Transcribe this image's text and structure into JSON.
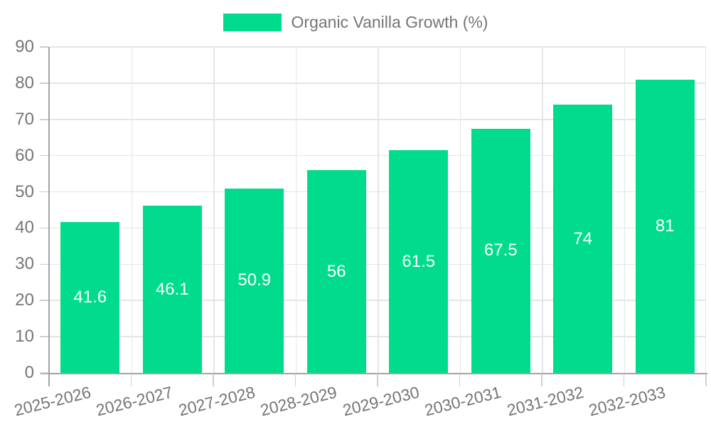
{
  "legend": {
    "label": "Organic Vanilla Growth (%)"
  },
  "chart_data": {
    "type": "bar",
    "title": "Organic Vanilla Growth (%)",
    "categories": [
      "2025-2026",
      "2026-2027",
      "2027-2028",
      "2028-2029",
      "2029-2030",
      "2030-2031",
      "2031-2032",
      "2032-2033"
    ],
    "series": [
      {
        "name": "Organic Vanilla Growth (%)",
        "values": [
          41.6,
          46.1,
          50.9,
          56,
          61.5,
          67.5,
          74,
          81
        ]
      }
    ],
    "values": [
      41.6,
      46.1,
      50.9,
      56,
      61.5,
      67.5,
      74,
      81
    ],
    "data_labels": [
      41.6,
      46.1,
      50.9,
      56,
      61.5,
      67.5,
      74,
      81
    ],
    "xlabel": "",
    "ylabel": "",
    "ylim": [
      0,
      90
    ],
    "yticks": [
      0,
      10,
      20,
      30,
      40,
      50,
      60,
      70,
      80,
      90
    ],
    "grid": true,
    "legend_position": "top-center",
    "data_label_position": "inside-center",
    "colors": {
      "bar": "#00DC8C",
      "grid": "#E5E5E5",
      "axis": "#A3A3A3",
      "tick": "#CFCFCF",
      "axis_text": "#757575",
      "data_label": "#FFFFFF",
      "background": "#FFFFFF"
    }
  }
}
